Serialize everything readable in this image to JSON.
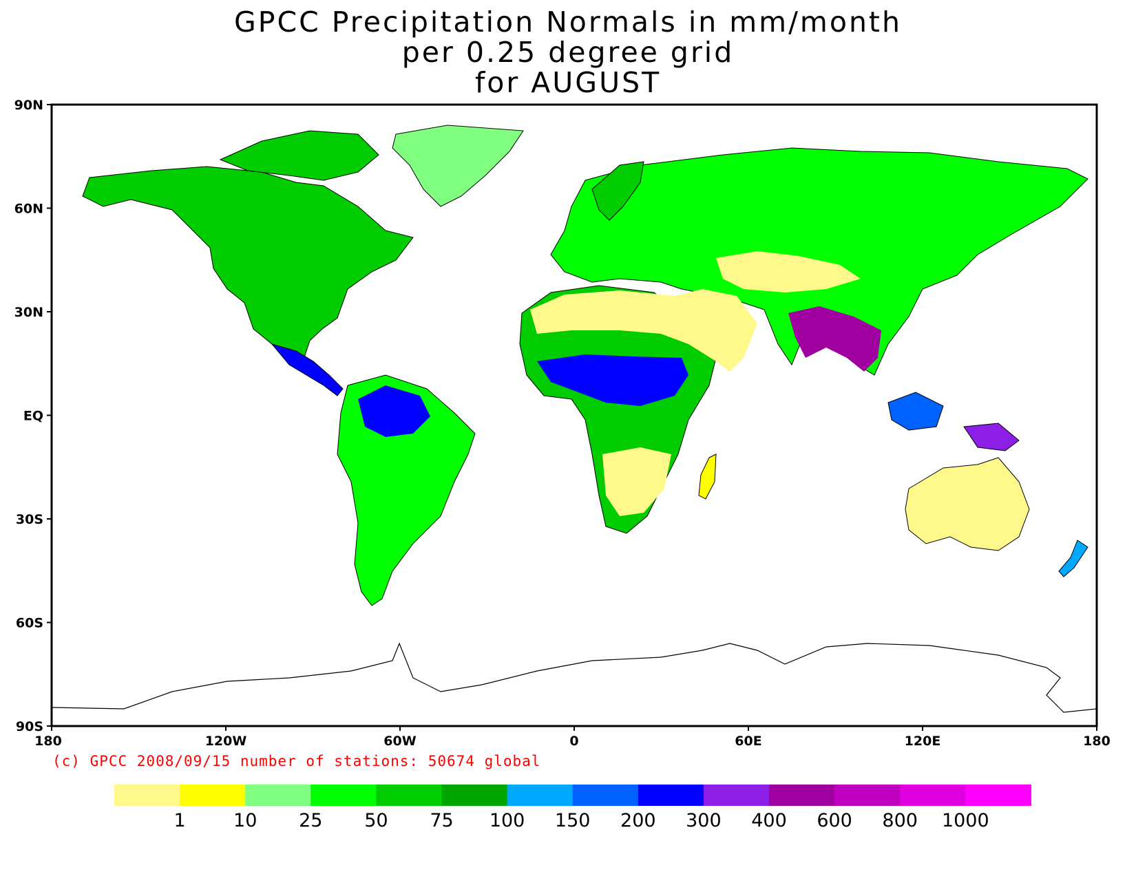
{
  "title_lines": [
    "GPCC Precipitation Normals in mm/month",
    "per 0.25 degree grid",
    "for AUGUST"
  ],
  "credit": "(c) GPCC 2008/09/15 number of stations: 50674 global",
  "lat_ticks": [
    "90N",
    "60N",
    "30N",
    "EQ",
    "30S",
    "60S",
    "90S"
  ],
  "lon_ticks": [
    "180",
    "120W",
    "60W",
    "0",
    "60E",
    "120E",
    "180"
  ],
  "legend": {
    "colors": [
      "#fff98c",
      "#ffff00",
      "#80ff80",
      "#00ff00",
      "#00cc00",
      "#00a600",
      "#00a8ff",
      "#0062ff",
      "#0000ff",
      "#8c1ee6",
      "#a000a0",
      "#c000c0",
      "#e000e0",
      "#ff00ff"
    ],
    "labels": [
      "1",
      "10",
      "25",
      "50",
      "75",
      "100",
      "150",
      "200",
      "300",
      "400",
      "600",
      "800",
      "1000"
    ]
  }
}
